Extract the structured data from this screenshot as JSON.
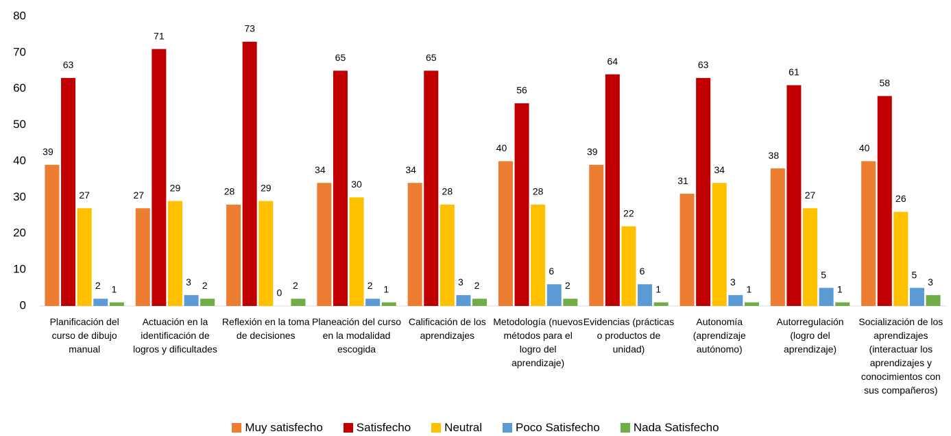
{
  "chart_data": {
    "type": "bar",
    "categories": [
      "Planificación del curso de dibujo manual",
      "Actuación en la identificación de logros y dificultades",
      "Reflexión en la toma de decisiones",
      "Planeación del curso en la modalidad escogida",
      "Calificación de los aprendizajes",
      "Metodología (nuevos métodos para el logro del aprendizaje)",
      "Evidencias (prácticas o productos de unidad)",
      "Autonomía (aprendizaje autónomo)",
      "Autorregulación (logro del aprendizaje)",
      "Socialización de los aprendizajes (interactuar los aprendizajes y conocimientos con sus compañeros)"
    ],
    "series": [
      {
        "name": "Muy satisfecho",
        "color": "#ED7D31",
        "values": [
          39,
          27,
          28,
          34,
          34,
          40,
          39,
          31,
          38,
          40
        ]
      },
      {
        "name": "Satisfecho",
        "color": "#C00000",
        "values": [
          63,
          71,
          73,
          65,
          65,
          56,
          64,
          63,
          61,
          58
        ]
      },
      {
        "name": "Neutral",
        "color": "#FFC000",
        "values": [
          27,
          29,
          29,
          30,
          28,
          28,
          22,
          34,
          27,
          26
        ]
      },
      {
        "name": "Poco Satisfecho",
        "color": "#5B9BD5",
        "values": [
          2,
          3,
          0,
          2,
          3,
          6,
          6,
          3,
          5,
          5
        ]
      },
      {
        "name": "Nada Satisfecho",
        "color": "#70AD47",
        "values": [
          1,
          2,
          2,
          1,
          2,
          2,
          1,
          1,
          1,
          3
        ]
      }
    ],
    "ylim": [
      0,
      80
    ],
    "yticks": [
      0,
      10,
      20,
      30,
      40,
      50,
      60,
      70,
      80
    ],
    "grid": false,
    "legend": "bottom"
  }
}
